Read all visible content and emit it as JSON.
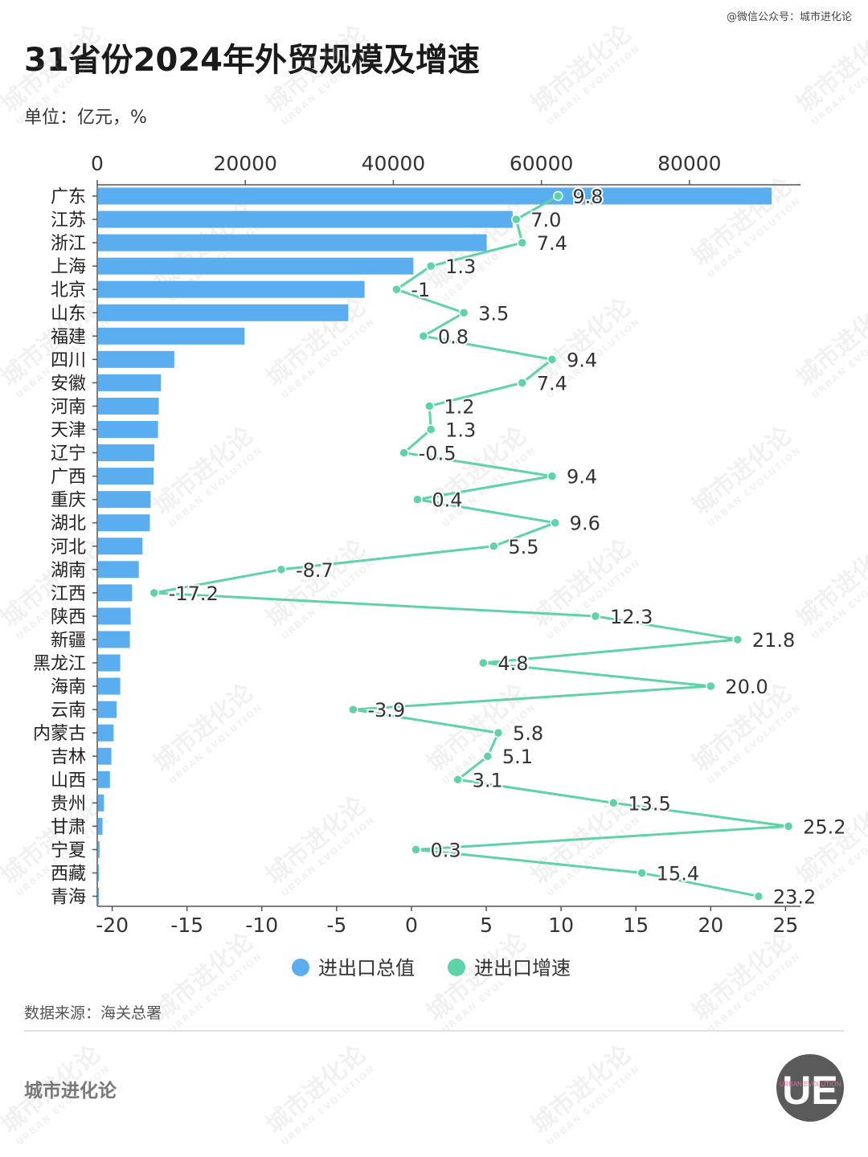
{
  "header": {
    "credit": "@微信公众号：城市进化论",
    "title": "31省份2024年外贸规模及增速",
    "unit": "单位：亿元，%"
  },
  "footer": {
    "source": "数据来源：海关总署",
    "brand": "城市进化论"
  },
  "watermark": {
    "text": "城市进化论",
    "subtext": "URBAN EVOLUTION"
  },
  "logo": {
    "letters": "UE",
    "ring_text": "URBAN EVOLUTION"
  },
  "colors": {
    "bar": "#5aaef0",
    "line": "#5ed3a8",
    "axis": "#555555"
  },
  "chart_data": {
    "type": "bar+line",
    "categories": [
      "广东",
      "江苏",
      "浙江",
      "上海",
      "北京",
      "山东",
      "福建",
      "四川",
      "安徽",
      "河南",
      "天津",
      "辽宁",
      "广西",
      "重庆",
      "湖北",
      "河北",
      "湖南",
      "江西",
      "陕西",
      "新疆",
      "黑龙江",
      "海南",
      "云南",
      "内蒙古",
      "吉林",
      "山西",
      "贵州",
      "甘肃",
      "宁夏",
      "西藏",
      "青海"
    ],
    "series": [
      {
        "name": "进出口总值",
        "type": "bar",
        "axis": "top",
        "values": [
          91000,
          56000,
          52500,
          42600,
          36000,
          33800,
          19800,
          10300,
          8500,
          8200,
          8100,
          7600,
          7500,
          7100,
          7000,
          6000,
          5500,
          4600,
          4400,
          4300,
          3000,
          3000,
          2500,
          2100,
          1800,
          1600,
          800,
          600,
          210,
          100,
          60
        ]
      },
      {
        "name": "进出口增速",
        "type": "line",
        "axis": "bottom",
        "values": [
          9.8,
          7.0,
          7.4,
          1.3,
          -1,
          3.5,
          0.8,
          9.4,
          7.4,
          1.2,
          1.3,
          -0.5,
          9.4,
          0.4,
          9.6,
          5.5,
          -8.7,
          -17.2,
          12.3,
          21.8,
          4.8,
          20.0,
          -3.9,
          5.8,
          5.1,
          3.1,
          13.5,
          25.2,
          0.3,
          15.4,
          23.2
        ],
        "labels": [
          "9.8",
          "7.0",
          "7.4",
          "1.3",
          "-1",
          "3.5",
          "0.8",
          "9.4",
          "7.4",
          "1.2",
          "1.3",
          "-0.5",
          "9.4",
          "0.4",
          "9.6",
          "5.5",
          "-8.7",
          "-17.2",
          "12.3",
          "21.8",
          "4.8",
          "20.0",
          "-3.9",
          "5.8",
          "5.1",
          "3.1",
          "13.5",
          "25.2",
          "0.3",
          "15.4",
          "23.2"
        ]
      }
    ],
    "top_axis": {
      "min": 0,
      "max": 95000,
      "ticks": [
        "0",
        "20000",
        "40000",
        "60000",
        "80000"
      ],
      "tick_values": [
        0,
        20000,
        40000,
        60000,
        80000
      ]
    },
    "bottom_axis": {
      "min": -21,
      "max": 26,
      "ticks": [
        "-20",
        "-15",
        "-10",
        "-5",
        "0",
        "5",
        "10",
        "15",
        "20",
        "25"
      ],
      "tick_values": [
        -20,
        -15,
        -10,
        -5,
        0,
        5,
        10,
        15,
        20,
        25
      ]
    },
    "legend": [
      "进出口总值",
      "进出口增速"
    ],
    "legend_position": "bottom",
    "grid": false
  }
}
